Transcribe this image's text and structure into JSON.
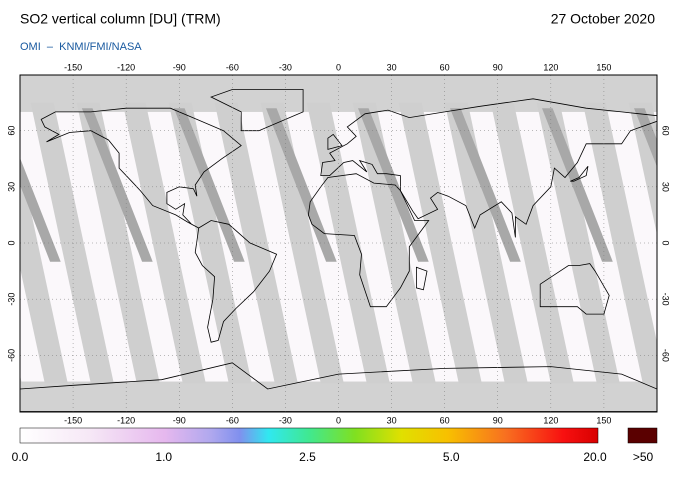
{
  "header": {
    "title": "SO2 vertical column [DU] (TRM)",
    "credit": "OMI  –  KNMI/FMI/NASA",
    "date": "27 October 2020"
  },
  "map": {
    "lon_ticks": [
      -150,
      -120,
      -90,
      -60,
      -30,
      0,
      30,
      60,
      90,
      120,
      150
    ],
    "lat_ticks": [
      60,
      30,
      0,
      -30,
      -60
    ]
  },
  "colorbar": {
    "ticks": [
      {
        "value": 0,
        "label": "0.0"
      },
      {
        "value": 1,
        "label": "1.0"
      },
      2.5,
      {
        "value": 5,
        "label": "5.0"
      },
      {
        "value": 20,
        "label": "20.0"
      }
    ],
    "overflow_label": ">50"
  }
}
